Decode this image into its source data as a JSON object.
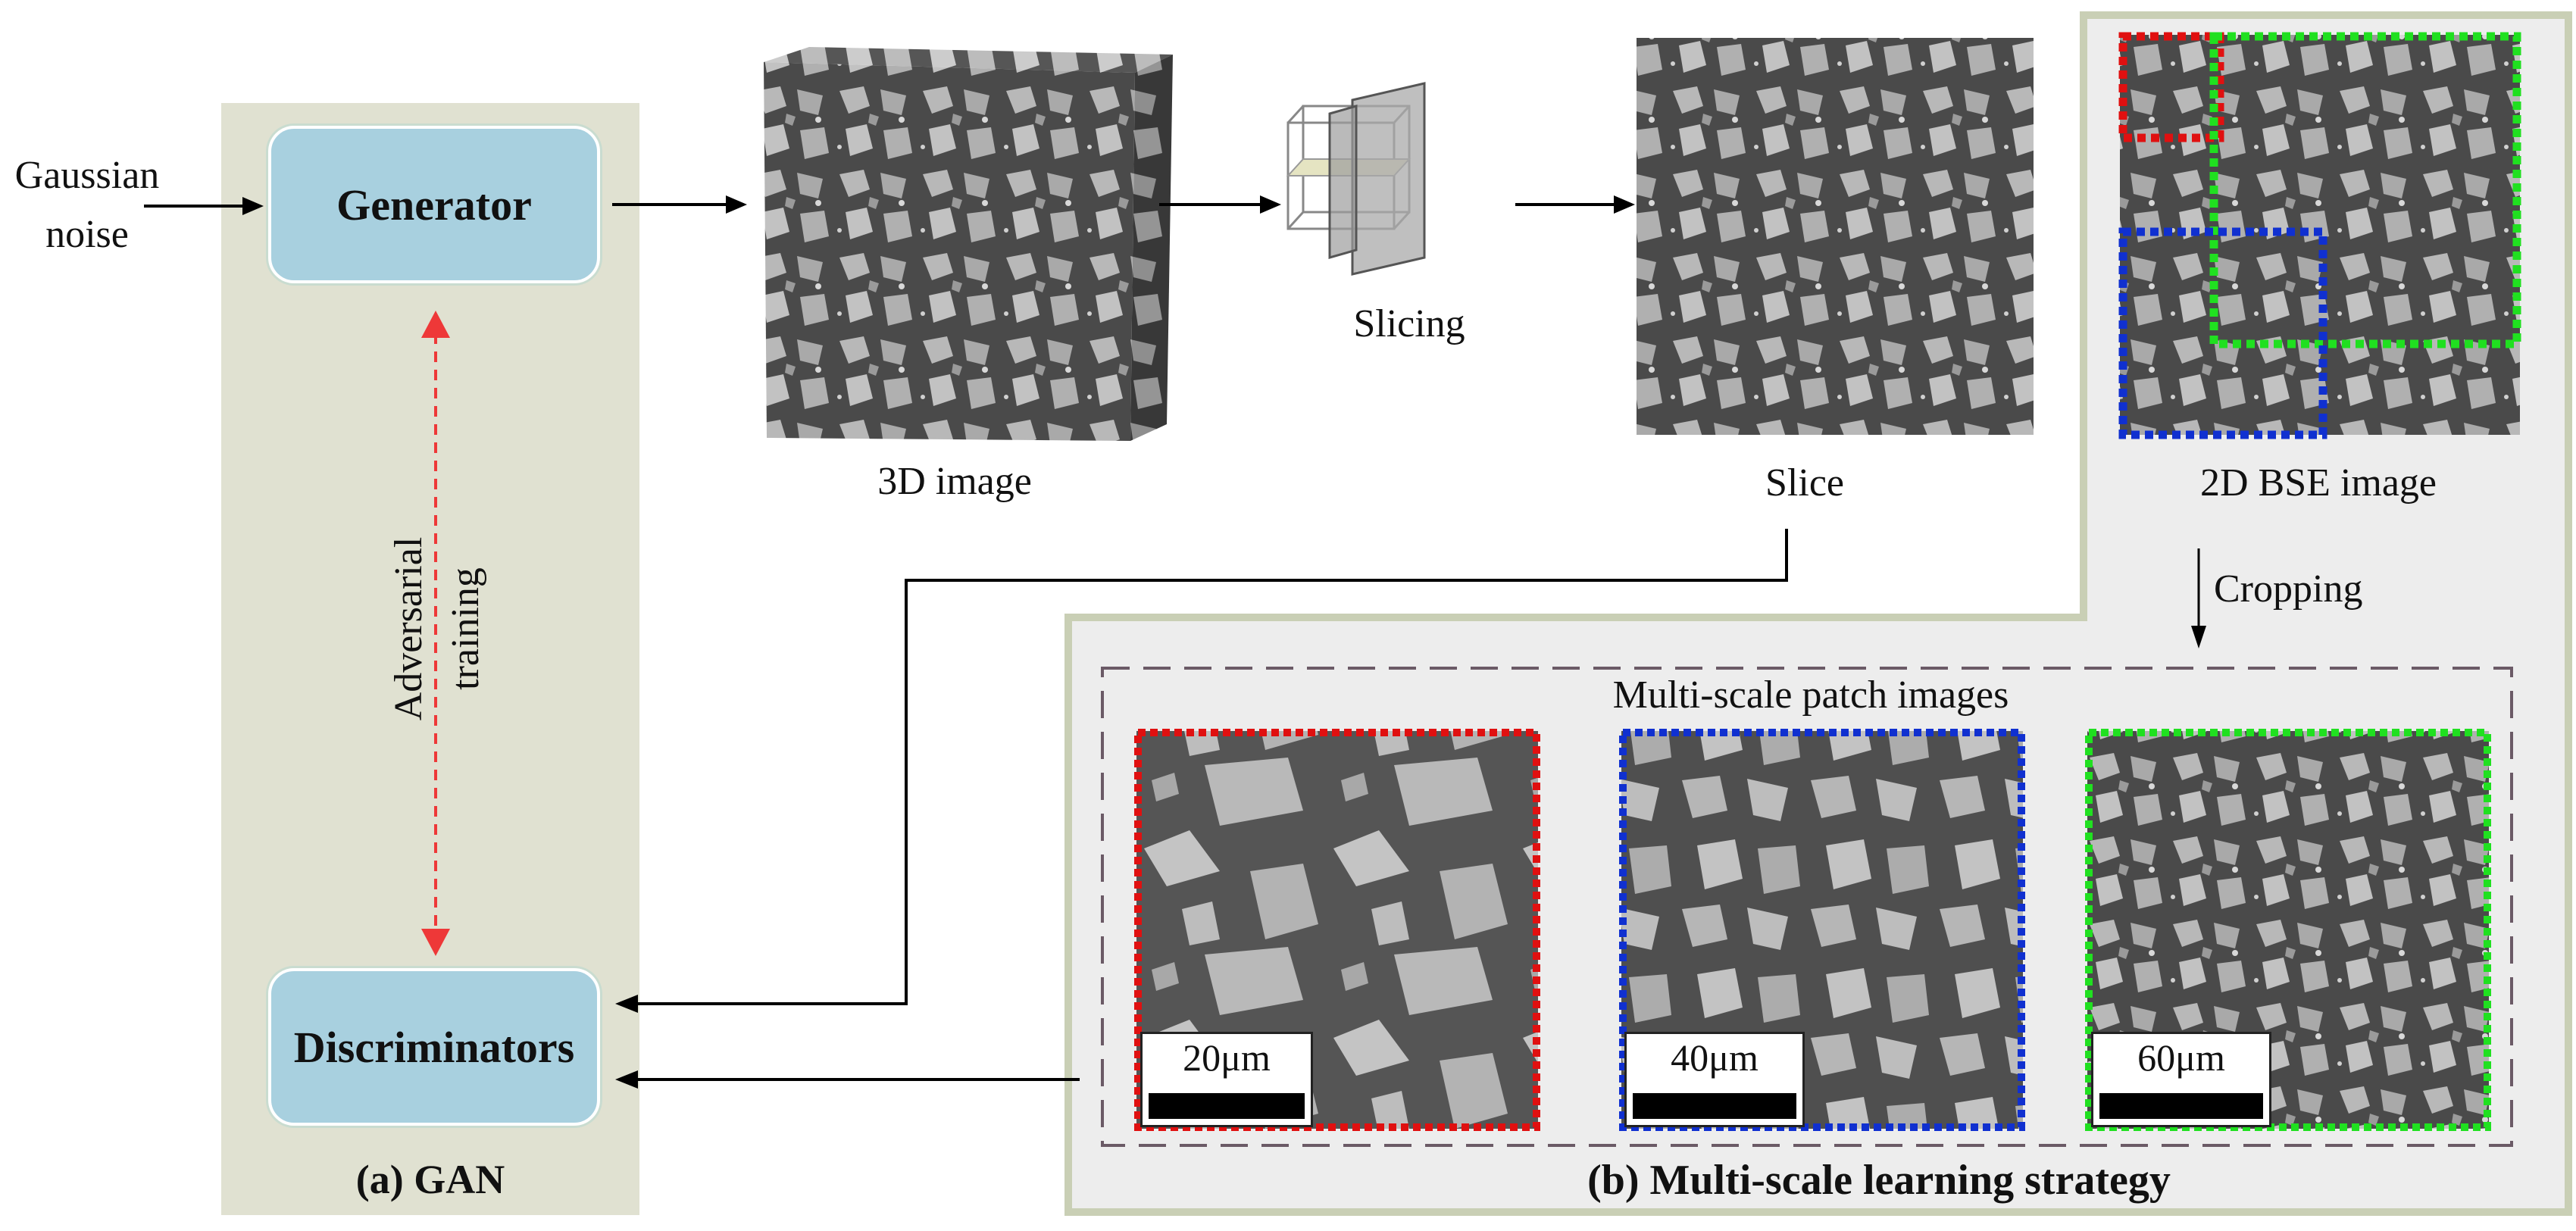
{
  "gan_panel": {
    "input_label_line1": "Gaussian",
    "input_label_line2": "noise",
    "generator_label": "Generator",
    "discriminator_label": "Discriminators",
    "adversarial_line1": "Adversarial",
    "adversarial_line2": "training",
    "caption": "(a) GAN"
  },
  "pipeline": {
    "image3d_caption": "3D image",
    "slicing_caption": "Slicing",
    "slice_caption": "Slice"
  },
  "strategy_panel": {
    "bse_caption": "2D BSE image",
    "crop_label": "Cropping",
    "patch_group_title": "Multi-scale patch images",
    "patches": [
      {
        "scale_label": "20μm",
        "frame_color": "#e01010"
      },
      {
        "scale_label": "40μm",
        "frame_color": "#1030d0"
      },
      {
        "scale_label": "60μm",
        "frame_color": "#20e020"
      }
    ],
    "caption": "(b) Multi-scale learning strategy"
  },
  "colors": {
    "gan_bg": "#e0e1d1",
    "strategy_bg": "#ededed",
    "strategy_border": "#c9cfb5",
    "node_fill": "#a8d0df",
    "adversarial_arrow": "#ee3838",
    "dashed_group": "#6b5a66"
  }
}
